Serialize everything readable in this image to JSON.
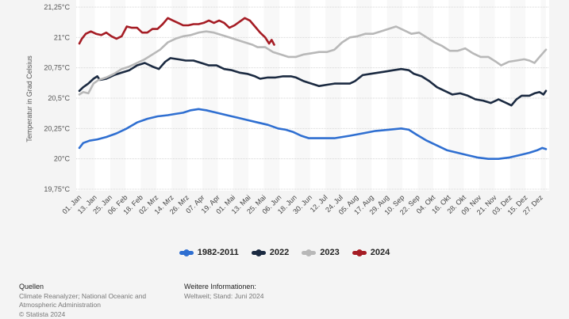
{
  "chart_data": {
    "type": "line",
    "title": "",
    "xlabel": "",
    "ylabel": "Temperatur in Grad Celsius",
    "ylim": [
      19.75,
      21.25
    ],
    "y_ticks": [
      19.75,
      20,
      20.25,
      20.5,
      20.75,
      21,
      21.25
    ],
    "y_tick_labels": [
      "19,75°C",
      "20°C",
      "20,25°C",
      "20,5°C",
      "20,75°C",
      "21°C",
      "21,25°C"
    ],
    "x_unit": "day_of_year",
    "xlim": [
      1,
      365
    ],
    "x_tick_days": [
      1,
      13,
      25,
      37,
      49,
      61,
      73,
      85,
      97,
      109,
      121,
      133,
      145,
      157,
      169,
      181,
      193,
      205,
      217,
      229,
      241,
      253,
      265,
      277,
      289,
      301,
      313,
      325,
      337,
      349,
      361
    ],
    "x_tick_labels": [
      "01. Jan",
      "13. Jan",
      "25. Jan",
      "06. Feb",
      "18. Feb",
      "02. Mrz",
      "14. Mrz",
      "26. Mrz",
      "07. Apr",
      "19. Apr",
      "01. Mai",
      "13. Mai",
      "25. Mai",
      "06. Jun",
      "18. Jun",
      "30. Jun",
      "12. Jul",
      "24. Jul",
      "05. Aug",
      "17. Aug",
      "29. Aug",
      "10. Sep",
      "22. Sep",
      "04. Okt",
      "16. Okt",
      "28. Okt",
      "09. Nov",
      "21. Nov",
      "03. Dez",
      "15. Dez",
      "27. Dez"
    ],
    "grid": true,
    "legend_position": "bottom",
    "series": [
      {
        "name": "1982-2011",
        "color": "#2f6fd1",
        "x": [
          1,
          4,
          9,
          15,
          22,
          30,
          38,
          46,
          54,
          62,
          70,
          76,
          82,
          88,
          94,
          100,
          108,
          116,
          124,
          132,
          140,
          148,
          156,
          162,
          168,
          174,
          180,
          200,
          212,
          222,
          232,
          242,
          252,
          258,
          264,
          272,
          280,
          288,
          296,
          304,
          312,
          320,
          328,
          336,
          344,
          352,
          358,
          362,
          365
        ],
        "values": [
          20.09,
          20.13,
          20.15,
          20.16,
          20.18,
          20.21,
          20.25,
          20.3,
          20.33,
          20.35,
          20.36,
          20.37,
          20.38,
          20.4,
          20.41,
          20.4,
          20.38,
          20.36,
          20.34,
          20.32,
          20.3,
          20.28,
          20.25,
          20.24,
          20.22,
          20.19,
          20.17,
          20.17,
          20.19,
          20.21,
          20.23,
          20.24,
          20.25,
          20.24,
          20.2,
          20.15,
          20.11,
          20.07,
          20.05,
          20.03,
          20.01,
          20.0,
          20.0,
          20.01,
          20.03,
          20.05,
          20.07,
          20.09,
          20.08
        ]
      },
      {
        "name": "2022",
        "color": "#1b2a41",
        "x": [
          1,
          4,
          8,
          12,
          15,
          17,
          22,
          28,
          34,
          40,
          46,
          52,
          58,
          63,
          68,
          72,
          78,
          84,
          90,
          96,
          102,
          108,
          114,
          120,
          126,
          132,
          138,
          142,
          148,
          154,
          160,
          166,
          170,
          176,
          182,
          188,
          194,
          200,
          206,
          212,
          216,
          222,
          228,
          234,
          240,
          246,
          252,
          258,
          262,
          268,
          274,
          280,
          286,
          292,
          298,
          304,
          310,
          316,
          322,
          328,
          334,
          338,
          342,
          346,
          352,
          356,
          360,
          363,
          365
        ],
        "values": [
          20.56,
          20.59,
          20.62,
          20.66,
          20.68,
          20.65,
          20.66,
          20.69,
          20.71,
          20.73,
          20.77,
          20.79,
          20.76,
          20.74,
          20.8,
          20.83,
          20.82,
          20.81,
          20.81,
          20.79,
          20.77,
          20.77,
          20.74,
          20.73,
          20.71,
          20.7,
          20.68,
          20.66,
          20.67,
          20.67,
          20.68,
          20.68,
          20.67,
          20.64,
          20.62,
          20.6,
          20.61,
          20.62,
          20.62,
          20.62,
          20.64,
          20.69,
          20.7,
          20.71,
          20.72,
          20.73,
          20.74,
          20.73,
          20.7,
          20.68,
          20.64,
          20.59,
          20.56,
          20.53,
          20.54,
          20.52,
          20.49,
          20.48,
          20.46,
          20.49,
          20.46,
          20.44,
          20.49,
          20.52,
          20.52,
          20.54,
          20.55,
          20.53,
          20.56
        ]
      },
      {
        "name": "2023",
        "color": "#b8b8b8",
        "x": [
          1,
          4,
          8,
          12,
          16,
          22,
          28,
          34,
          40,
          46,
          52,
          58,
          64,
          70,
          76,
          82,
          88,
          94,
          100,
          106,
          112,
          118,
          124,
          130,
          136,
          140,
          146,
          152,
          158,
          164,
          170,
          176,
          182,
          188,
          194,
          200,
          206,
          212,
          218,
          224,
          230,
          236,
          242,
          248,
          254,
          260,
          266,
          272,
          278,
          284,
          290,
          296,
          302,
          308,
          314,
          320,
          326,
          330,
          336,
          342,
          348,
          352,
          356,
          360,
          365
        ],
        "values": [
          20.53,
          20.55,
          20.54,
          20.62,
          20.65,
          20.67,
          20.7,
          20.74,
          20.76,
          20.79,
          20.82,
          20.86,
          20.9,
          20.96,
          20.99,
          21.01,
          21.02,
          21.04,
          21.05,
          21.04,
          21.02,
          21.0,
          20.98,
          20.96,
          20.94,
          20.92,
          20.92,
          20.88,
          20.86,
          20.84,
          20.84,
          20.86,
          20.87,
          20.88,
          20.88,
          20.9,
          20.96,
          21.0,
          21.01,
          21.03,
          21.03,
          21.05,
          21.07,
          21.09,
          21.06,
          21.03,
          21.04,
          21.0,
          20.96,
          20.93,
          20.89,
          20.89,
          20.91,
          20.87,
          20.84,
          20.84,
          20.8,
          20.77,
          20.8,
          20.81,
          20.82,
          20.81,
          20.79,
          20.84,
          20.9
        ]
      },
      {
        "name": "2024",
        "color": "#a51c24",
        "x": [
          1,
          3,
          6,
          10,
          14,
          18,
          22,
          26,
          30,
          34,
          38,
          42,
          46,
          50,
          54,
          58,
          62,
          66,
          70,
          74,
          78,
          82,
          86,
          90,
          94,
          98,
          102,
          106,
          110,
          114,
          118,
          122,
          126,
          130,
          134,
          138,
          142,
          146,
          149,
          151,
          153
        ],
        "values": [
          20.95,
          20.99,
          21.03,
          21.05,
          21.03,
          21.02,
          21.04,
          21.01,
          20.99,
          21.01,
          21.09,
          21.08,
          21.08,
          21.04,
          21.04,
          21.07,
          21.07,
          21.11,
          21.16,
          21.14,
          21.12,
          21.1,
          21.1,
          21.11,
          21.11,
          21.12,
          21.14,
          21.12,
          21.14,
          21.12,
          21.08,
          21.1,
          21.13,
          21.16,
          21.14,
          21.09,
          21.04,
          21.0,
          20.95,
          20.98,
          20.94
        ]
      }
    ]
  },
  "legend": {
    "items": [
      {
        "label": "1982-2011",
        "color": "#2f6fd1"
      },
      {
        "label": "2022",
        "color": "#1b2a41"
      },
      {
        "label": "2023",
        "color": "#b8b8b8"
      },
      {
        "label": "2024",
        "color": "#a51c24"
      }
    ]
  },
  "footer": {
    "sources_heading": "Quellen",
    "sources_line1": "Climate Reanalyzer; National Oceanic and",
    "sources_line2": "Atmospheric Administration",
    "copyright": "© Statista 2024",
    "info_heading": "Weitere Informationen:",
    "info_text": "Weltweit; Stand: Juni 2024"
  }
}
